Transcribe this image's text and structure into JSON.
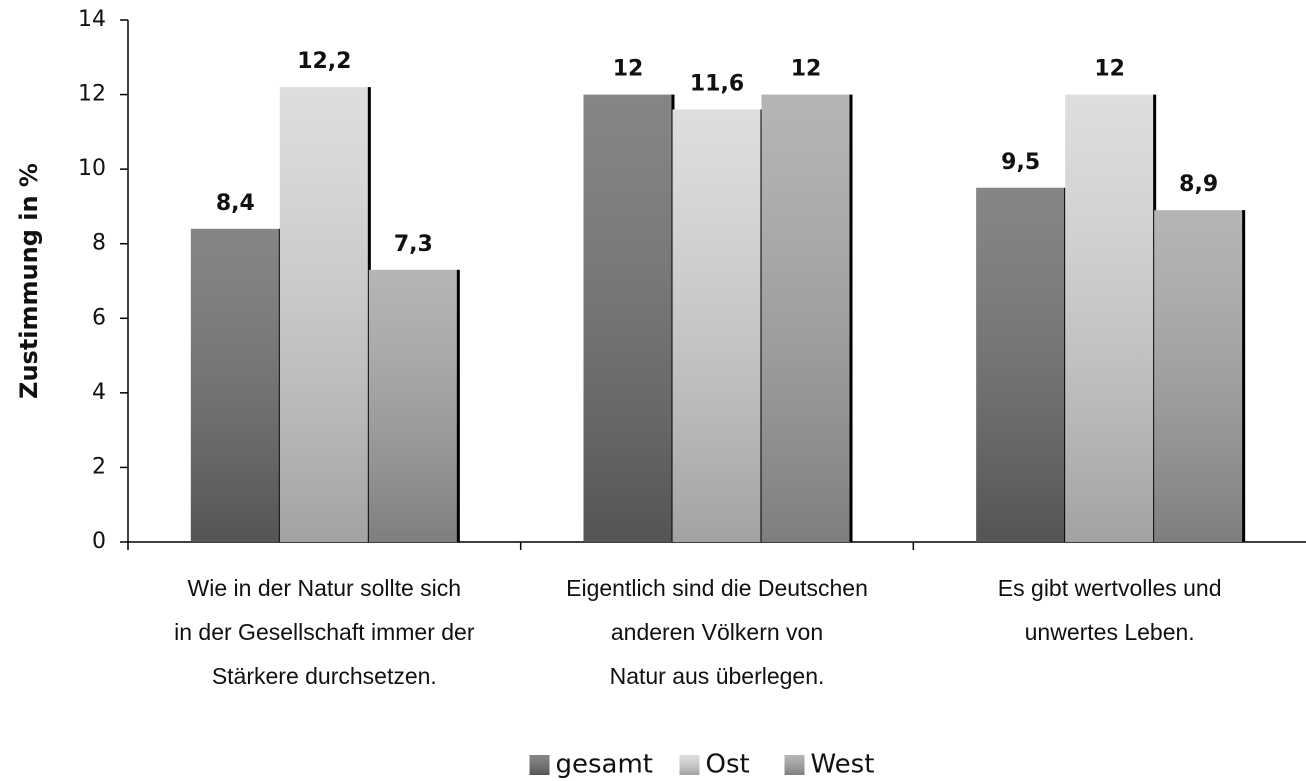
{
  "chart_data": {
    "type": "bar",
    "y_label": "Zustimmung in %",
    "categories": [
      [
        "Wie in der Natur sollte sich",
        "in der Gesellschaft immer der",
        "Stärkere durchsetzen."
      ],
      [
        "Eigentlich sind die Deutschen",
        "anderen Völkern von",
        "Natur aus überlegen."
      ],
      [
        "Es gibt wertvolles und",
        "unwertes Leben."
      ]
    ],
    "series": [
      {
        "name": "gesamt",
        "color": "#707070",
        "values": [
          8.4,
          12,
          9.5
        ],
        "value_labels": [
          "8,4",
          "12",
          "9,5"
        ]
      },
      {
        "name": "Ost",
        "color": "#d8d8d8",
        "values": [
          12.2,
          11.6,
          12
        ],
        "value_labels": [
          "12,2",
          "11,6",
          "12"
        ]
      },
      {
        "name": "West",
        "color": "#a8a8a8",
        "values": [
          7.3,
          12,
          8.9
        ],
        "value_labels": [
          "7,3",
          "12",
          "8,9"
        ]
      }
    ],
    "ylim": [
      0,
      14
    ],
    "yticks": [
      0,
      2,
      4,
      6,
      8,
      10,
      12,
      14
    ],
    "legend": "bottom"
  }
}
